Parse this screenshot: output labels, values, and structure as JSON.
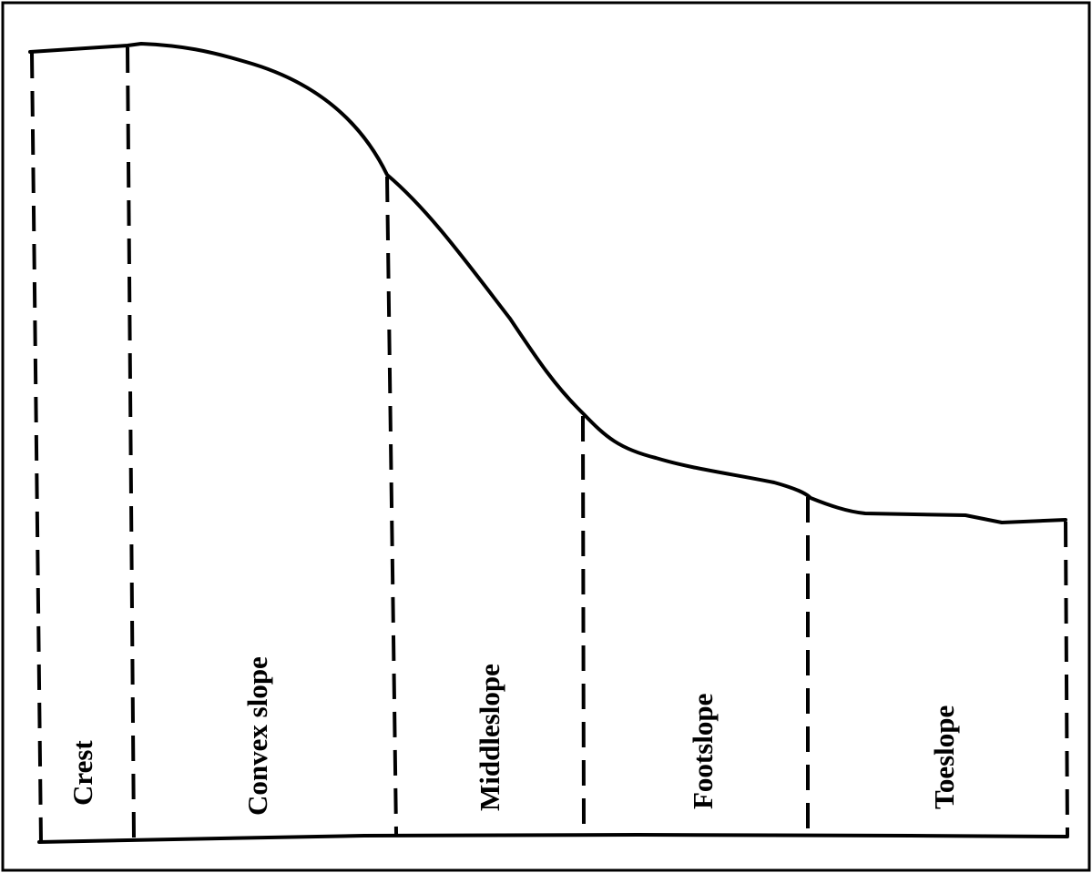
{
  "diagram": {
    "zones": [
      {
        "id": "crest",
        "label": "Crest"
      },
      {
        "id": "convex-slope",
        "label": "Convex slope"
      },
      {
        "id": "middleslope",
        "label": "Middleslope"
      },
      {
        "id": "footslope",
        "label": "Footslope"
      },
      {
        "id": "toeslope",
        "label": "Toeslope"
      }
    ],
    "colors": {
      "line": "#000000",
      "background": "#ffffff"
    }
  }
}
